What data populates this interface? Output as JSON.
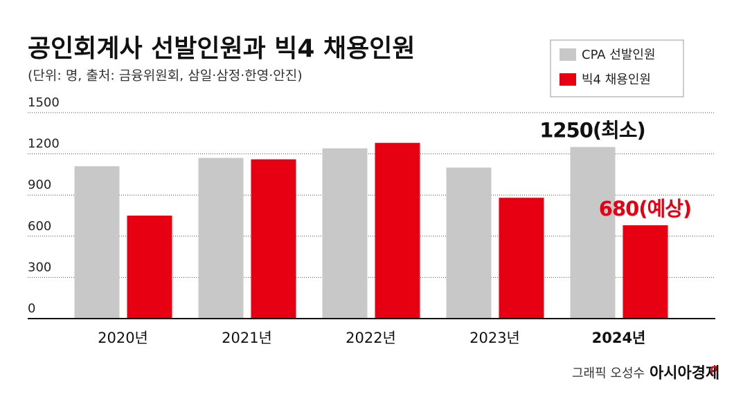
{
  "chart_data": {
    "type": "bar",
    "title": "공인회계사 선발인원과 빅4 채용인원",
    "subtitle": "(단위: 명, 출처: 금융위원회, 삼일·삼정·한영·안진)",
    "categories": [
      "2020년",
      "2021년",
      "2022년",
      "2023년",
      "2024년"
    ],
    "series": [
      {
        "name": "CPA 선발인원",
        "color": "#c8c8c8",
        "values": [
          1110,
          1170,
          1240,
          1100,
          1250
        ],
        "value_labels": [
          null,
          null,
          null,
          null,
          "1250(최소)"
        ],
        "label_color": "#111111"
      },
      {
        "name": "빅4 채용인원",
        "color": "#e60012",
        "values": [
          750,
          1160,
          1280,
          880,
          680
        ],
        "value_labels": [
          null,
          null,
          null,
          null,
          "680(예상)"
        ],
        "label_color": "#e60012"
      }
    ],
    "ylim": [
      0,
      1500
    ],
    "yticks": [
      0,
      300,
      600,
      900,
      1200,
      1500
    ],
    "grid": true,
    "legend": "top-right",
    "credit": "그래픽 오성수",
    "source": "아시아경제"
  }
}
